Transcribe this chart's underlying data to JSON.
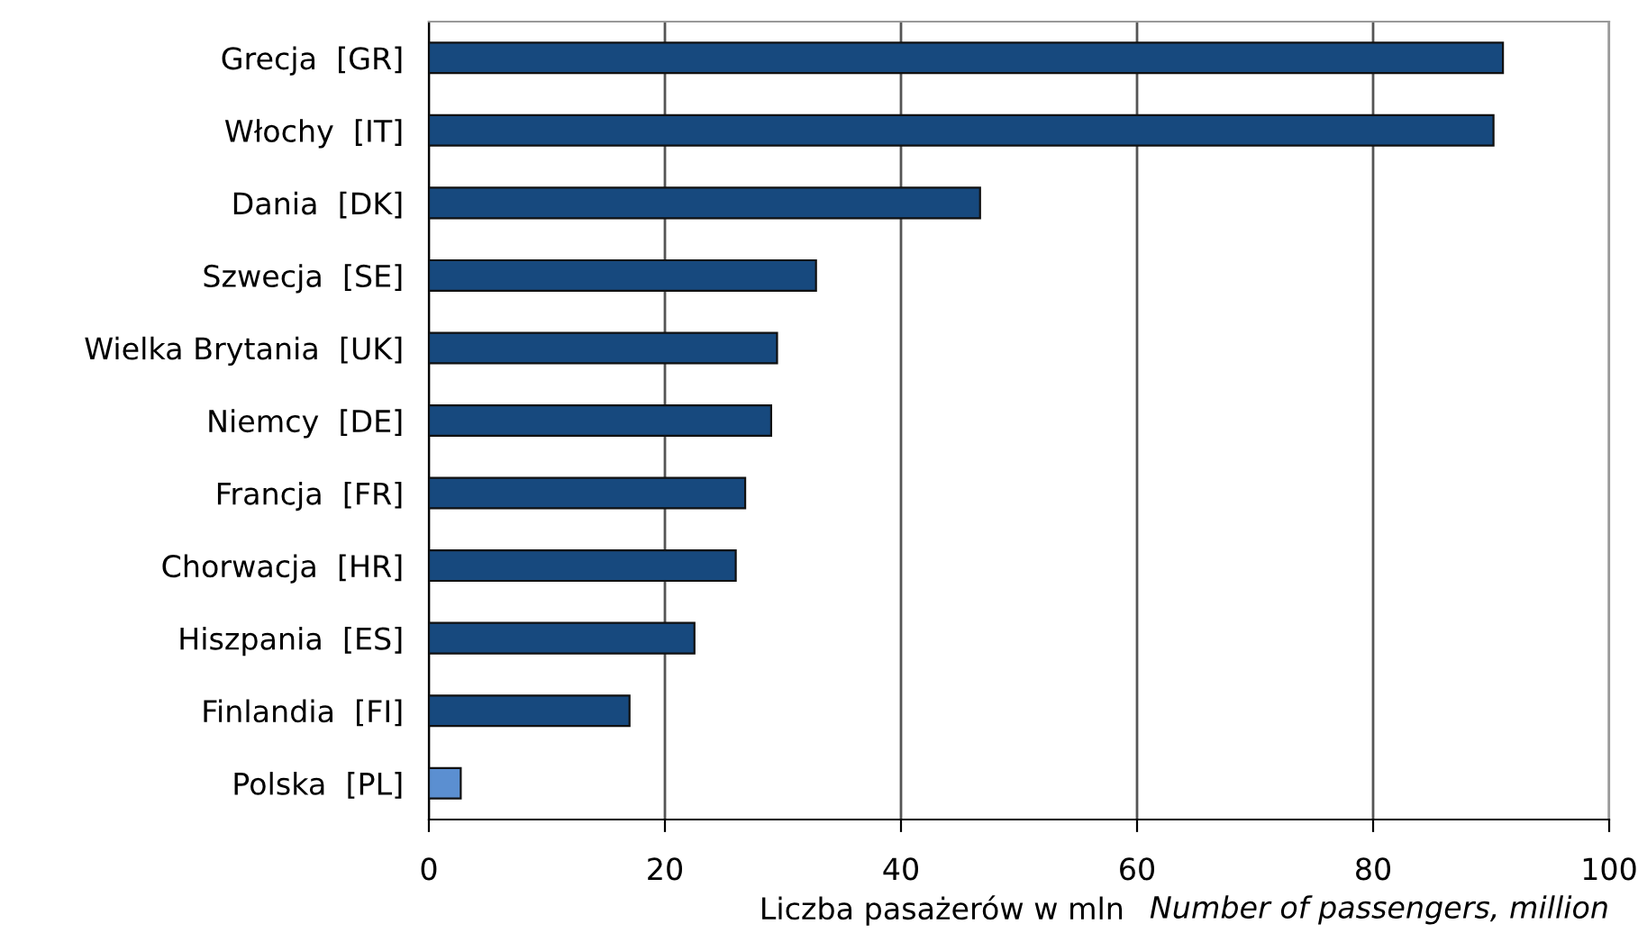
{
  "chart_data": {
    "type": "bar",
    "orientation": "horizontal",
    "categories": [
      "Grecja  [GR]",
      "Włochy  [IT]",
      "Dania  [DK]",
      "Szwecja  [SE]",
      "Wielka Brytania  [UK]",
      "Niemcy  [DE]",
      "Francja  [FR]",
      "Chorwacja  [HR]",
      "Hiszpania  [ES]",
      "Finlandia  [FI]",
      "Polska  [PL]"
    ],
    "values": [
      91.0,
      90.2,
      46.7,
      32.8,
      29.5,
      29.0,
      26.8,
      26.0,
      22.5,
      17.0,
      2.7
    ],
    "colors": [
      "#17497e",
      "#17497e",
      "#17497e",
      "#17497e",
      "#17497e",
      "#17497e",
      "#17497e",
      "#17497e",
      "#17497e",
      "#17497e",
      "#5b8fd1"
    ],
    "xlim": [
      0,
      100
    ],
    "xticks": [
      0,
      20,
      40,
      60,
      80,
      100
    ],
    "grid": "x",
    "xlabel": "Liczba pasażerów w mln",
    "annotations": [
      "Number of passengers, million"
    ]
  }
}
